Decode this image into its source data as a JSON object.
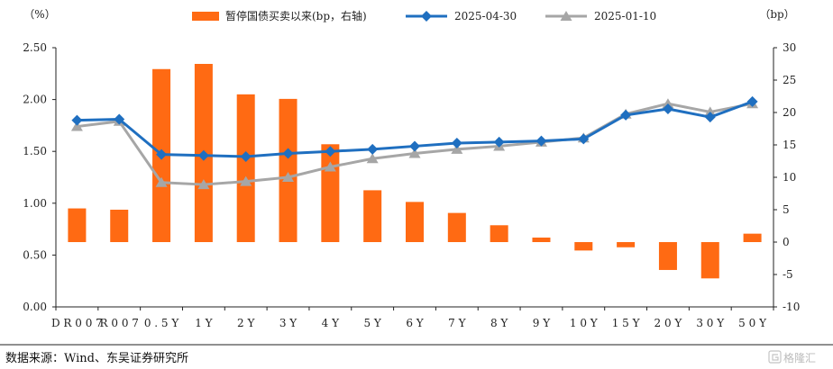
{
  "chart_data": {
    "type": "bar+line",
    "left_axis_unit": "（%）",
    "right_axis_unit": "（bp）",
    "left_ylim": [
      0,
      2.5
    ],
    "left_ticks": [
      "0.00",
      "0.50",
      "1.00",
      "1.50",
      "2.00",
      "2.50"
    ],
    "right_ylim": [
      -10,
      30
    ],
    "right_ticks": [
      "-10",
      "-5",
      "0",
      "5",
      "10",
      "15",
      "20",
      "25",
      "30"
    ],
    "categories": [
      "DR007",
      "R007",
      "0.5Y",
      "1Y",
      "2Y",
      "3Y",
      "4Y",
      "5Y",
      "6Y",
      "7Y",
      "8Y",
      "9Y",
      "10Y",
      "15Y",
      "20Y",
      "30Y",
      "50Y"
    ],
    "category_labels": [
      "D R 0 0 7",
      "R 0 0 7",
      "0 . 5 Y",
      "1 Y",
      "2 Y",
      "3 Y",
      "4 Y",
      "5 Y",
      "6 Y",
      "7 Y",
      "8 Y",
      "9 Y",
      "1 0 Y",
      "1 5 Y",
      "2 0 Y",
      "3 0 Y",
      "5 0 Y"
    ],
    "series": [
      {
        "name": "暂停国债买卖以来(bp，右轴)",
        "kind": "bar",
        "axis": "right",
        "color": "#FF6A13",
        "values": [
          5.2,
          5.0,
          26.7,
          27.5,
          22.8,
          22.1,
          15.1,
          8.0,
          6.2,
          4.5,
          2.6,
          0.7,
          -1.3,
          -0.8,
          -4.3,
          -5.6,
          1.3
        ]
      },
      {
        "name": "2025-04-30",
        "kind": "line",
        "axis": "left",
        "color": "#1F6FC0",
        "marker": "diamond",
        "values": [
          1.8,
          1.81,
          1.47,
          1.46,
          1.45,
          1.48,
          1.5,
          1.52,
          1.55,
          1.58,
          1.59,
          1.6,
          1.62,
          1.85,
          1.91,
          1.83,
          1.98
        ]
      },
      {
        "name": "2025-01-10",
        "kind": "line",
        "axis": "left",
        "color": "#A6A6A6",
        "marker": "triangle",
        "values": [
          1.74,
          1.79,
          1.2,
          1.18,
          1.21,
          1.25,
          1.35,
          1.43,
          1.48,
          1.52,
          1.55,
          1.59,
          1.63,
          1.86,
          1.96,
          1.88,
          1.96
        ]
      }
    ]
  },
  "source": "数据来源：Wind、东吴证券研究所",
  "watermark": "格隆汇"
}
